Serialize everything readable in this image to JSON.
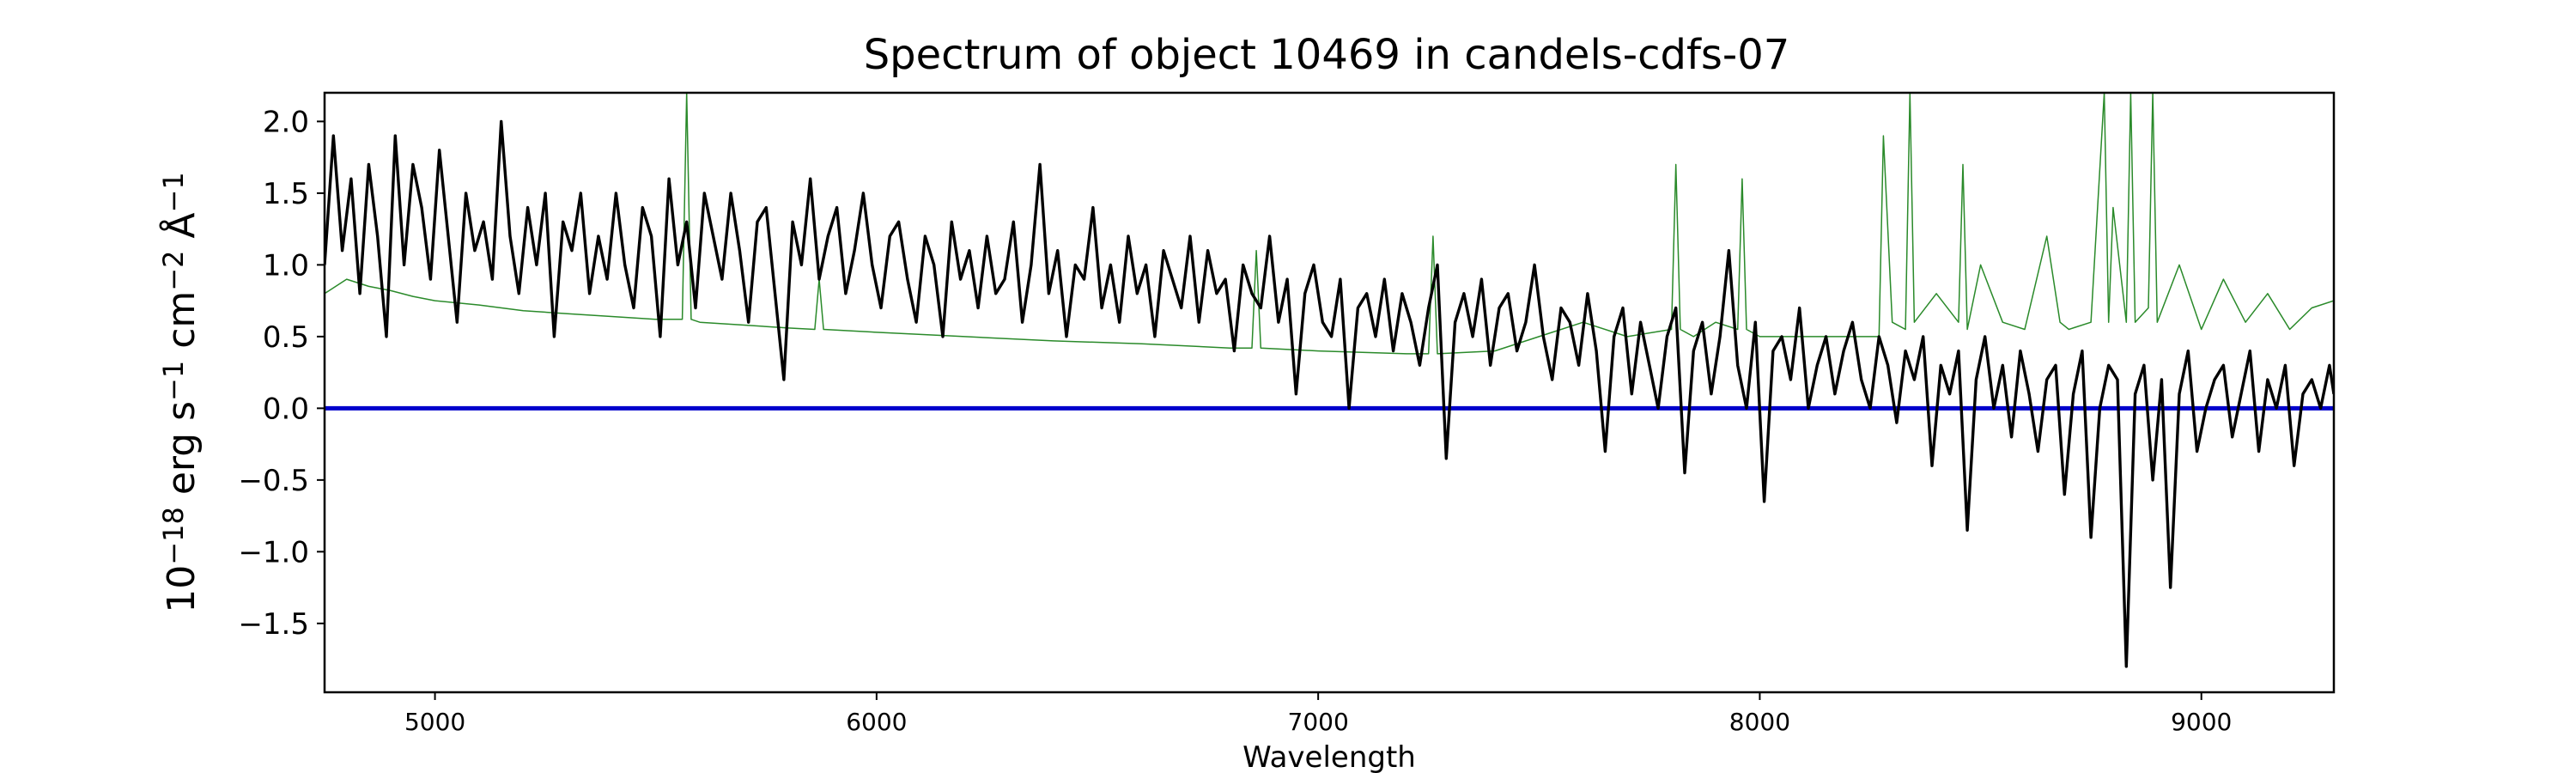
{
  "chart_data": {
    "type": "line",
    "title": "Spectrum of object 10469 in candels-cdfs-07",
    "xlabel": "Wavelength",
    "ylabel_parts": [
      "10",
      "−18",
      " erg s",
      "−1",
      " cm",
      "−2",
      " Å",
      "−1"
    ],
    "xlim": [
      4750,
      9300
    ],
    "ylim": [
      -1.98,
      2.2
    ],
    "xticks": [
      5000,
      6000,
      7000,
      8000,
      9000
    ],
    "xtick_labels": [
      "5000",
      "6000",
      "7000",
      "8000",
      "9000"
    ],
    "yticks": [
      2.0,
      1.5,
      1.0,
      0.5,
      0.0,
      -0.5,
      -1.0,
      -1.5
    ],
    "ytick_labels": [
      "2.0",
      "1.5",
      "1.0",
      "0.5",
      "0.0",
      "−0.5",
      "−1.0",
      "−1.5"
    ],
    "grid": false,
    "series": [
      {
        "role": "flux",
        "color": "#000000",
        "x": [
          4750,
          4770,
          4790,
          4810,
          4830,
          4850,
          4870,
          4890,
          4910,
          4930,
          4950,
          4970,
          4990,
          5010,
          5030,
          5050,
          5070,
          5090,
          5110,
          5130,
          5150,
          5170,
          5190,
          5210,
          5230,
          5250,
          5270,
          5290,
          5310,
          5330,
          5350,
          5370,
          5390,
          5410,
          5430,
          5450,
          5470,
          5490,
          5510,
          5530,
          5550,
          5570,
          5590,
          5610,
          5630,
          5650,
          5670,
          5690,
          5710,
          5730,
          5750,
          5770,
          5790,
          5810,
          5830,
          5850,
          5870,
          5890,
          5910,
          5930,
          5950,
          5970,
          5990,
          6010,
          6030,
          6050,
          6070,
          6090,
          6110,
          6130,
          6150,
          6170,
          6190,
          6210,
          6230,
          6250,
          6270,
          6290,
          6310,
          6330,
          6350,
          6370,
          6390,
          6410,
          6430,
          6450,
          6470,
          6490,
          6510,
          6530,
          6550,
          6570,
          6590,
          6610,
          6630,
          6650,
          6670,
          6690,
          6710,
          6730,
          6750,
          6770,
          6790,
          6810,
          6830,
          6850,
          6870,
          6890,
          6910,
          6930,
          6950,
          6970,
          6990,
          7010,
          7030,
          7050,
          7070,
          7090,
          7110,
          7130,
          7150,
          7170,
          7190,
          7210,
          7230,
          7250,
          7270,
          7290,
          7310,
          7330,
          7350,
          7370,
          7390,
          7410,
          7430,
          7450,
          7470,
          7490,
          7510,
          7530,
          7550,
          7570,
          7590,
          7610,
          7630,
          7650,
          7670,
          7690,
          7710,
          7730,
          7750,
          7770,
          7790,
          7810,
          7830,
          7850,
          7870,
          7890,
          7910,
          7930,
          7950,
          7970,
          7990,
          8010,
          8030,
          8050,
          8070,
          8090,
          8110,
          8130,
          8150,
          8170,
          8190,
          8210,
          8230,
          8250,
          8270,
          8290,
          8310,
          8330,
          8350,
          8370,
          8390,
          8410,
          8430,
          8450,
          8470,
          8490,
          8510,
          8530,
          8550,
          8570,
          8590,
          8610,
          8630,
          8650,
          8670,
          8690,
          8710,
          8730,
          8750,
          8770,
          8790,
          8810,
          8830,
          8850,
          8870,
          8890,
          8910,
          8930,
          8950,
          8970,
          8990,
          9010,
          9030,
          9050,
          9070,
          9090,
          9110,
          9130,
          9150,
          9170,
          9190,
          9210,
          9230,
          9250,
          9270,
          9290,
          9300
        ],
        "y": [
          1.0,
          1.9,
          1.1,
          1.6,
          0.8,
          1.7,
          1.2,
          0.5,
          1.9,
          1.0,
          1.7,
          1.4,
          0.9,
          1.8,
          1.2,
          0.6,
          1.5,
          1.1,
          1.3,
          0.9,
          2.0,
          1.2,
          0.8,
          1.4,
          1.0,
          1.5,
          0.5,
          1.3,
          1.1,
          1.5,
          0.8,
          1.2,
          0.9,
          1.5,
          1.0,
          0.7,
          1.4,
          1.2,
          0.5,
          1.6,
          1.0,
          1.3,
          0.7,
          1.5,
          1.2,
          0.9,
          1.5,
          1.1,
          0.6,
          1.3,
          1.4,
          0.8,
          0.2,
          1.3,
          1.0,
          1.6,
          0.9,
          1.2,
          1.4,
          0.8,
          1.1,
          1.5,
          1.0,
          0.7,
          1.2,
          1.3,
          0.9,
          0.6,
          1.2,
          1.0,
          0.5,
          1.3,
          0.9,
          1.1,
          0.7,
          1.2,
          0.8,
          0.9,
          1.3,
          0.6,
          1.0,
          1.7,
          0.8,
          1.1,
          0.5,
          1.0,
          0.9,
          1.4,
          0.7,
          1.0,
          0.6,
          1.2,
          0.8,
          1.0,
          0.5,
          1.1,
          0.9,
          0.7,
          1.2,
          0.6,
          1.1,
          0.8,
          0.9,
          0.4,
          1.0,
          0.8,
          0.7,
          1.2,
          0.6,
          0.9,
          0.1,
          0.8,
          1.0,
          0.6,
          0.5,
          0.9,
          0.0,
          0.7,
          0.8,
          0.5,
          0.9,
          0.4,
          0.8,
          0.6,
          0.3,
          0.7,
          1.0,
          -0.35,
          0.6,
          0.8,
          0.5,
          0.9,
          0.3,
          0.7,
          0.8,
          0.4,
          0.6,
          1.0,
          0.5,
          0.2,
          0.7,
          0.6,
          0.3,
          0.8,
          0.4,
          -0.3,
          0.5,
          0.7,
          0.1,
          0.6,
          0.3,
          0.0,
          0.5,
          0.7,
          -0.45,
          0.4,
          0.6,
          0.1,
          0.5,
          1.1,
          0.3,
          0.0,
          0.6,
          -0.65,
          0.4,
          0.5,
          0.2,
          0.7,
          0.0,
          0.3,
          0.5,
          0.1,
          0.4,
          0.6,
          0.2,
          0.0,
          0.5,
          0.3,
          -0.1,
          0.4,
          0.2,
          0.5,
          -0.4,
          0.3,
          0.1,
          0.4,
          -0.85,
          0.2,
          0.5,
          0.0,
          0.3,
          -0.2,
          0.4,
          0.1,
          -0.3,
          0.2,
          0.3,
          -0.6,
          0.1,
          0.4,
          -0.9,
          0.0,
          0.3,
          0.2,
          -1.8,
          0.1,
          0.3,
          -0.5,
          0.2,
          -1.25,
          0.1,
          0.4,
          -0.3,
          0.0,
          0.2,
          0.3,
          -0.2,
          0.1,
          0.4,
          -0.3,
          0.2,
          0.0,
          0.3,
          -0.4,
          0.1,
          0.2,
          0.0,
          0.3,
          0.1
        ]
      },
      {
        "role": "model",
        "color": "#2a8a2a",
        "x": [
          4750,
          4800,
          4850,
          4900,
          4950,
          5000,
          5100,
          5200,
          5300,
          5400,
          5500,
          5560,
          5570,
          5580,
          5600,
          5700,
          5800,
          5860,
          5870,
          5880,
          6000,
          6200,
          6400,
          6600,
          6800,
          6850,
          6860,
          6870,
          7000,
          7200,
          7250,
          7260,
          7270,
          7400,
          7500,
          7600,
          7700,
          7800,
          7810,
          7820,
          7850,
          7900,
          7950,
          7960,
          7970,
          8000,
          8100,
          8200,
          8270,
          8280,
          8300,
          8330,
          8340,
          8350,
          8400,
          8450,
          8460,
          8470,
          8500,
          8550,
          8600,
          8650,
          8680,
          8700,
          8750,
          8780,
          8790,
          8800,
          8830,
          8840,
          8850,
          8880,
          8890,
          8900,
          8950,
          9000,
          9050,
          9100,
          9150,
          9200,
          9250,
          9300
        ],
        "y": [
          0.8,
          0.9,
          0.85,
          0.82,
          0.78,
          0.75,
          0.72,
          0.68,
          0.66,
          0.64,
          0.62,
          0.62,
          2.2,
          0.62,
          0.6,
          0.58,
          0.56,
          0.55,
          0.9,
          0.55,
          0.53,
          0.5,
          0.47,
          0.45,
          0.42,
          0.42,
          1.1,
          0.42,
          0.4,
          0.38,
          0.38,
          1.2,
          0.38,
          0.4,
          0.5,
          0.6,
          0.5,
          0.55,
          1.7,
          0.55,
          0.5,
          0.6,
          0.55,
          1.6,
          0.55,
          0.5,
          0.5,
          0.5,
          0.5,
          1.9,
          0.6,
          0.55,
          2.2,
          0.6,
          0.8,
          0.6,
          1.7,
          0.55,
          1.0,
          0.6,
          0.55,
          1.2,
          0.6,
          0.55,
          0.6,
          2.2,
          0.6,
          1.4,
          0.6,
          2.2,
          0.6,
          0.7,
          2.2,
          0.6,
          1.0,
          0.55,
          0.9,
          0.6,
          0.8,
          0.55,
          0.7,
          0.75
        ]
      },
      {
        "role": "error",
        "color": "#0000cc",
        "x": [
          4750,
          9300
        ],
        "y": [
          0.0,
          0.0
        ]
      }
    ]
  }
}
